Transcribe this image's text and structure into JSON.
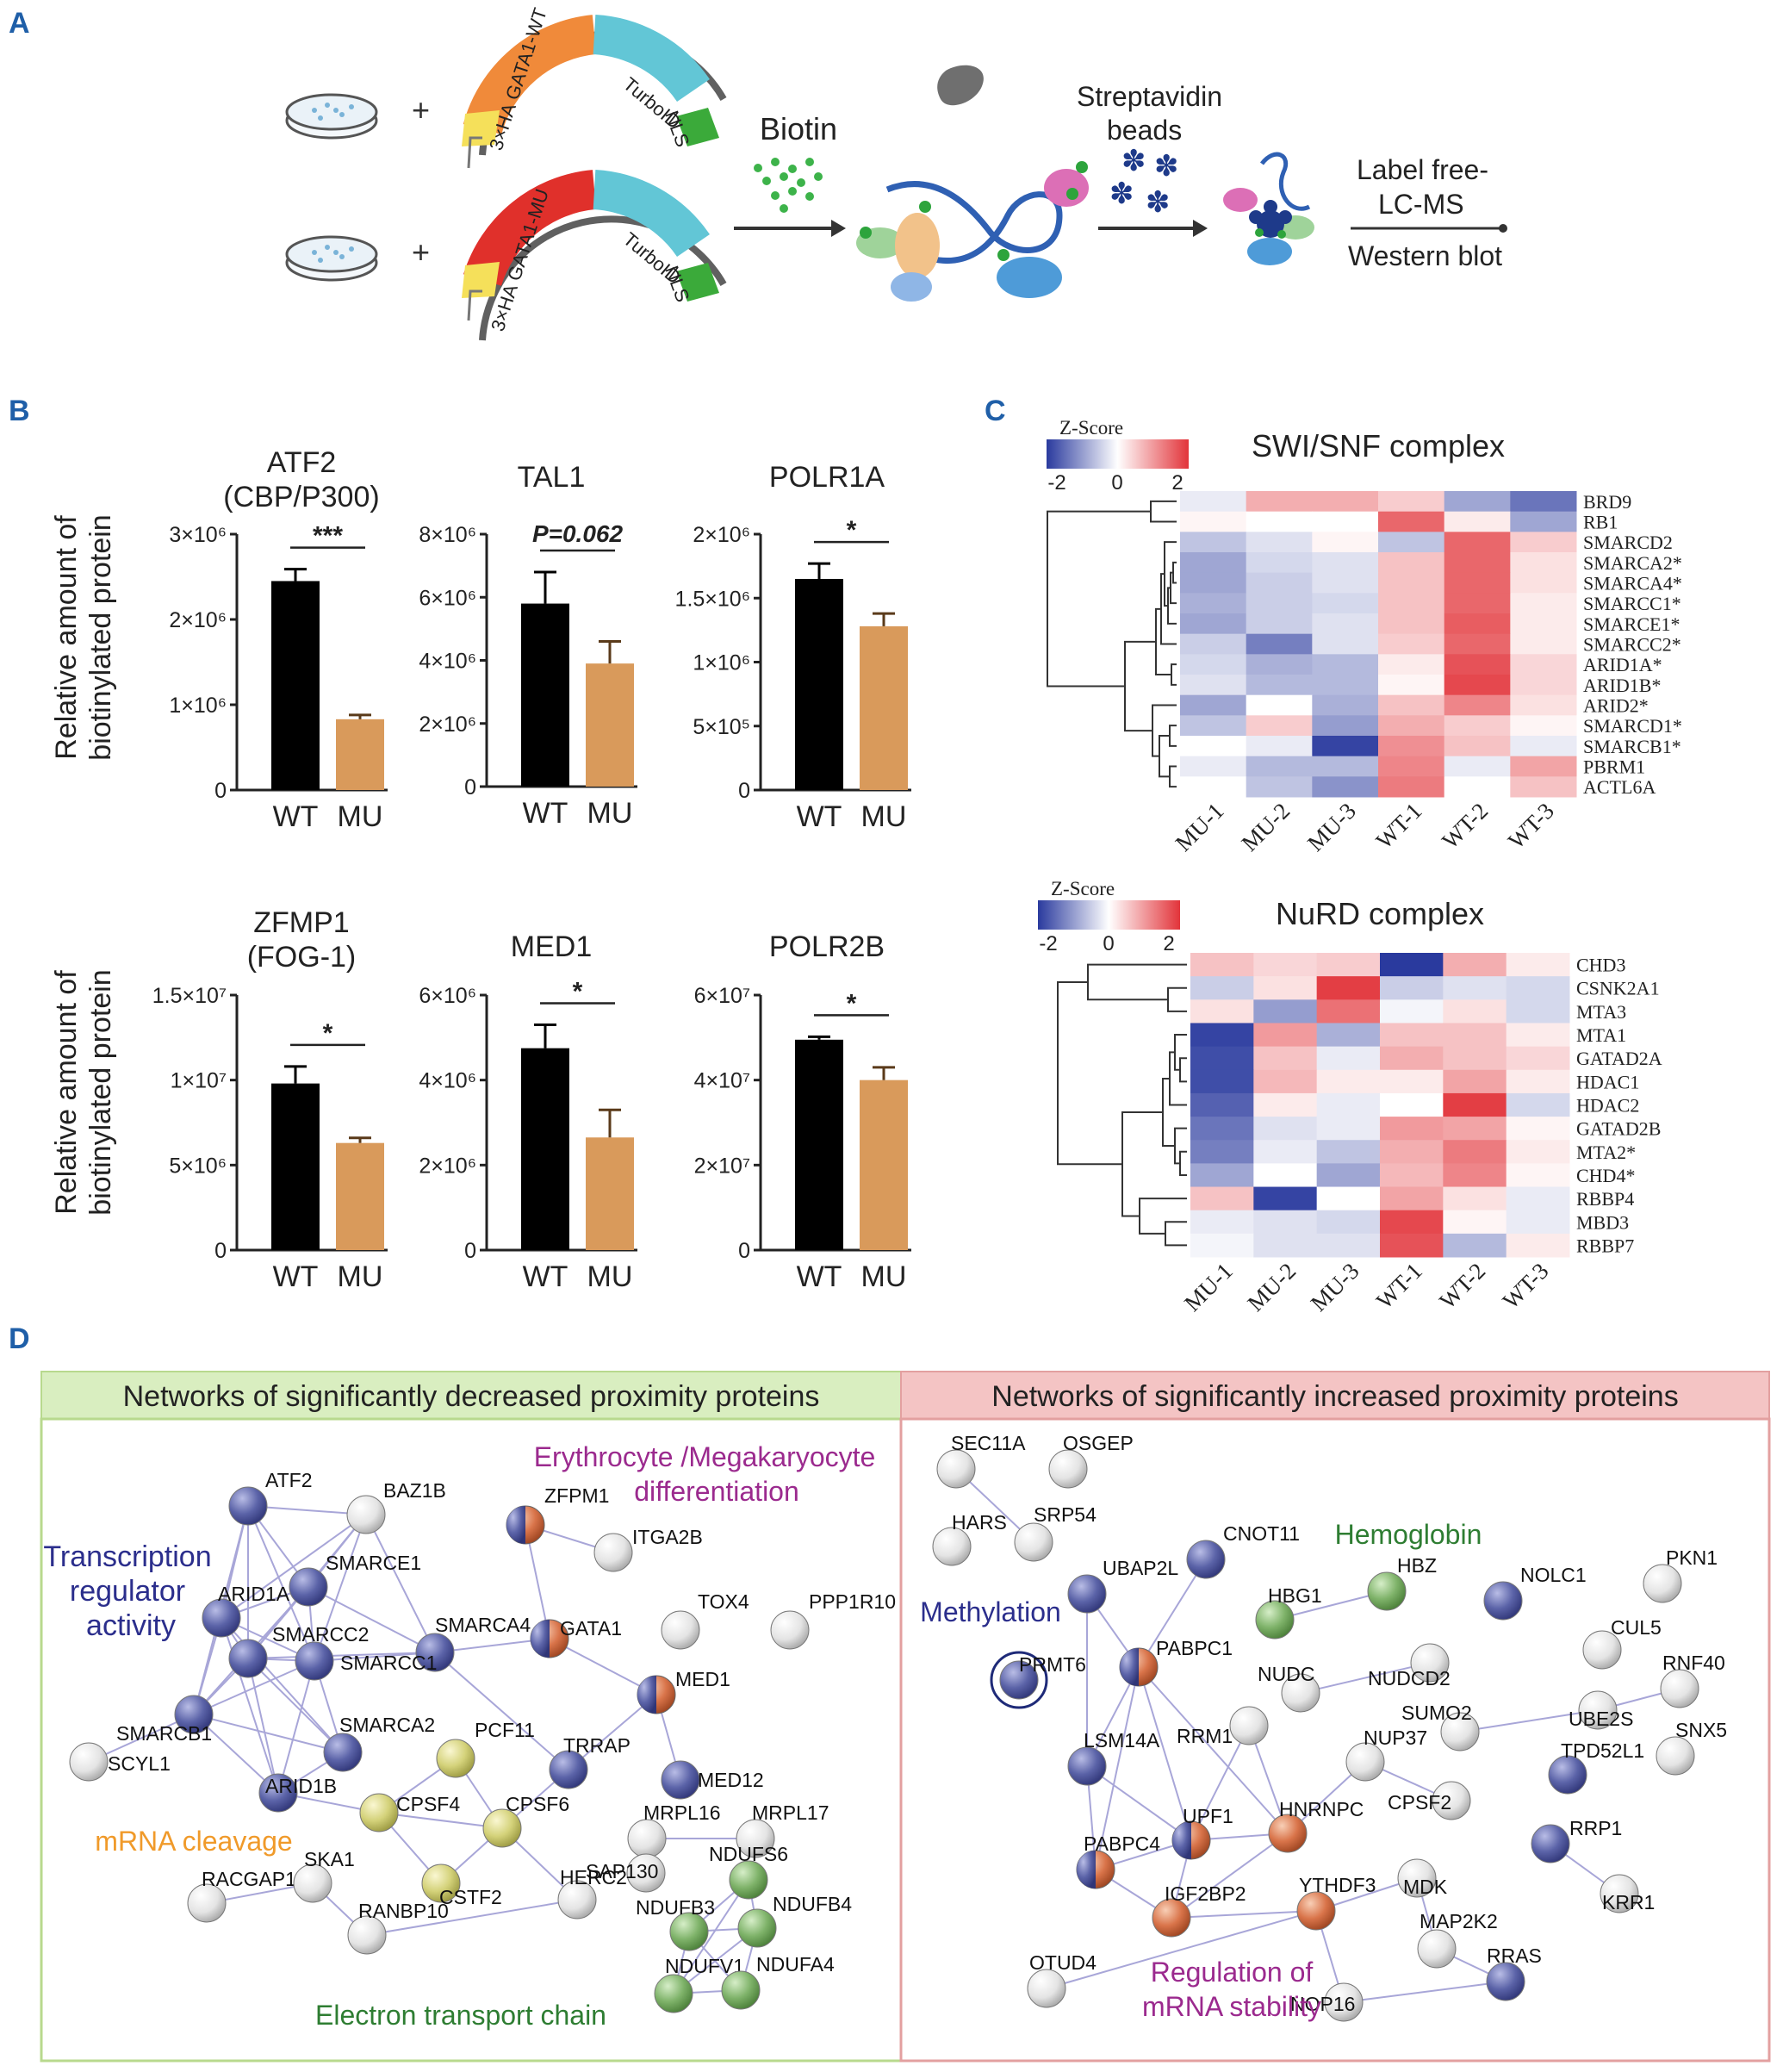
{
  "panel_labels": {
    "a": "A",
    "b": "B",
    "c": "C",
    "d": "D"
  },
  "panelA": {
    "construct_wt": {
      "ha": "3×HA",
      "gene": "GATA1-WT",
      "tag": "TurboID",
      "nls": "NLS"
    },
    "construct_mu": {
      "ha": "3×HA",
      "gene": "GATA1-MU",
      "tag": "TurboID",
      "nls": "NLS"
    },
    "plus": "+",
    "biotin_label": "Biotin",
    "beads_line1": "Streptavidin",
    "beads_line2": "beads",
    "readout_line1": "Label free-",
    "readout_line2": "LC-MS",
    "readout_line3": "Western blot",
    "colors": {
      "wt_gene": "#F08A3A",
      "mu_gene": "#E0302B",
      "turboid": "#62C6D6",
      "nls": "#3BAA3A",
      "promoter": "#F5E05A",
      "backbone": "#606060"
    }
  },
  "panelB": {
    "y_axis_label_line1": "Relative amount of",
    "y_axis_label_line2": "biotinylated protein",
    "colors": {
      "WT": "#000000",
      "MU": "#D99A5B"
    }
  },
  "chart_data": [
    {
      "type": "bar",
      "title": "ATF2",
      "subtitle": "(CBP/P300)",
      "categories": [
        "WT",
        "MU"
      ],
      "values": [
        2450000,
        830000
      ],
      "errors": [
        140000,
        50000
      ],
      "ylim": [
        0,
        3000000
      ],
      "yticks": [
        0,
        1000000,
        2000000,
        3000000
      ],
      "ytick_labels": [
        "0",
        "1×10⁶",
        "2×10⁶",
        "3×10⁶"
      ],
      "significance": "***"
    },
    {
      "type": "bar",
      "title": "TAL1",
      "subtitle": "",
      "categories": [
        "WT",
        "MU"
      ],
      "values": [
        5800000,
        3900000
      ],
      "errors": [
        1000000,
        700000
      ],
      "ylim": [
        0,
        8000000
      ],
      "yticks": [
        0,
        2000000,
        4000000,
        6000000,
        8000000
      ],
      "ytick_labels": [
        "0",
        "2×10⁶",
        "4×10⁶",
        "6×10⁶",
        "8×10⁶"
      ],
      "significance": "P=0.062"
    },
    {
      "type": "bar",
      "title": "POLR1A",
      "subtitle": "",
      "categories": [
        "WT",
        "MU"
      ],
      "values": [
        1650000,
        1280000
      ],
      "errors": [
        120000,
        100000
      ],
      "ylim": [
        0,
        2000000
      ],
      "yticks": [
        0,
        500000,
        1000000,
        1500000,
        2000000
      ],
      "ytick_labels": [
        "0",
        "5×10⁵",
        "1×10⁶",
        "1.5×10⁶",
        "2×10⁶"
      ],
      "significance": "*"
    },
    {
      "type": "bar",
      "title": "ZFMP1",
      "subtitle": "(FOG-1)",
      "categories": [
        "WT",
        "MU"
      ],
      "values": [
        9800000,
        6300000
      ],
      "errors": [
        1000000,
        300000
      ],
      "ylim": [
        0,
        15000000
      ],
      "yticks": [
        0,
        5000000,
        10000000,
        15000000
      ],
      "ytick_labels": [
        "0",
        "5×10⁶",
        "1×10⁷",
        "1.5×10⁷"
      ],
      "significance": "*"
    },
    {
      "type": "bar",
      "title": "MED1",
      "subtitle": "",
      "categories": [
        "WT",
        "MU"
      ],
      "values": [
        4750000,
        2650000
      ],
      "errors": [
        550000,
        650000
      ],
      "ylim": [
        0,
        6000000
      ],
      "yticks": [
        0,
        2000000,
        4000000,
        6000000
      ],
      "ytick_labels": [
        "0",
        "2×10⁶",
        "4×10⁶",
        "6×10⁶"
      ],
      "significance": "*"
    },
    {
      "type": "bar",
      "title": "POLR2B",
      "subtitle": "",
      "categories": [
        "WT",
        "MU"
      ],
      "values": [
        49500000,
        40000000
      ],
      "errors": [
        700000,
        3000000
      ],
      "ylim": [
        0,
        60000000
      ],
      "yticks": [
        0,
        20000000,
        40000000,
        60000000
      ],
      "ytick_labels": [
        "0",
        "2×10⁷",
        "4×10⁷",
        "6×10⁷"
      ],
      "significance": "*"
    },
    {
      "type": "heatmap",
      "title": "SWI/SNF complex",
      "legend_title": "Z-Score",
      "legend_ticks": [
        "-2",
        "0",
        "2"
      ],
      "columns": [
        "MU-1",
        "MU-2",
        "MU-3",
        "WT-1",
        "WT-2",
        "WT-3"
      ],
      "rows": [
        "BRD9",
        "RB1",
        "SMARCD2",
        "SMARCA2*",
        "SMARCA4*",
        "SMARCC1*",
        "SMARCE1*",
        "SMARCC2*",
        "ARID1A*",
        "ARID1B*",
        "ARID2*",
        "SMARCD1*",
        "SMARCB1*",
        "PBRM1",
        "ACTL6A"
      ],
      "values": [
        [
          -0.2,
          0.8,
          0.8,
          0.5,
          -0.9,
          -1.4
        ],
        [
          0.1,
          0.0,
          0.0,
          1.5,
          0.2,
          -0.9
        ],
        [
          -0.6,
          -0.3,
          0.1,
          -0.6,
          1.5,
          0.5
        ],
        [
          -0.9,
          -0.4,
          -0.3,
          0.6,
          1.5,
          0.3
        ],
        [
          -0.9,
          -0.5,
          -0.3,
          0.6,
          1.5,
          0.3
        ],
        [
          -0.8,
          -0.5,
          -0.4,
          0.6,
          1.5,
          0.2
        ],
        [
          -0.9,
          -0.5,
          -0.3,
          0.6,
          1.6,
          0.2
        ],
        [
          -0.5,
          -1.3,
          -0.3,
          0.5,
          1.5,
          0.2
        ],
        [
          -0.4,
          -0.8,
          -0.7,
          0.2,
          1.7,
          0.4
        ],
        [
          -0.3,
          -0.7,
          -0.7,
          0.1,
          1.8,
          0.4
        ],
        [
          -0.9,
          0.0,
          -0.8,
          0.6,
          1.2,
          0.3
        ],
        [
          -0.6,
          0.5,
          -1.0,
          0.8,
          0.5,
          0.1
        ],
        [
          0.0,
          -0.2,
          -1.9,
          1.1,
          0.6,
          -0.2
        ],
        [
          -0.2,
          -0.7,
          -0.7,
          1.2,
          -0.2,
          0.9
        ],
        [
          0.0,
          -0.6,
          -1.1,
          1.3,
          0.0,
          0.6
        ]
      ]
    },
    {
      "type": "heatmap",
      "title": "NuRD complex",
      "legend_title": "Z-Score",
      "legend_ticks": [
        "-2",
        "0",
        "2"
      ],
      "columns": [
        "MU-1",
        "MU-2",
        "MU-3",
        "WT-1",
        "WT-2",
        "WT-3"
      ],
      "rows": [
        "CHD3",
        "CSNK2A1",
        "MTA3",
        "MTA1",
        "GATAD2A",
        "HDAC1",
        "HDAC2",
        "GATAD2B",
        "MTA2*",
        "CHD4*",
        "RBBP4",
        "MBD3",
        "RBBP7"
      ],
      "values": [
        [
          0.6,
          0.4,
          0.5,
          -2.0,
          0.8,
          0.2
        ],
        [
          -0.5,
          0.3,
          1.9,
          -0.5,
          -0.3,
          -0.4
        ],
        [
          0.3,
          -1.0,
          1.4,
          -0.1,
          0.3,
          -0.4
        ],
        [
          -1.9,
          1.0,
          -0.8,
          0.6,
          0.6,
          0.2
        ],
        [
          -1.8,
          0.6,
          -0.2,
          0.8,
          0.6,
          0.4
        ],
        [
          -1.8,
          0.7,
          0.2,
          0.2,
          0.9,
          0.2
        ],
        [
          -1.6,
          0.2,
          -0.2,
          0.0,
          1.9,
          -0.4
        ],
        [
          -1.4,
          -0.3,
          -0.2,
          1.0,
          0.9,
          0.1
        ],
        [
          -1.3,
          -0.2,
          -0.6,
          0.8,
          1.3,
          0.2
        ],
        [
          -0.9,
          0.0,
          -0.9,
          0.7,
          1.2,
          0.1
        ],
        [
          0.6,
          -1.9,
          0.0,
          0.9,
          0.3,
          -0.2
        ],
        [
          -0.2,
          -0.3,
          -0.4,
          1.8,
          0.1,
          -0.2
        ],
        [
          -0.1,
          -0.3,
          -0.3,
          1.7,
          -0.7,
          0.2
        ]
      ]
    }
  ],
  "panelD": {
    "left_header": "Networks of significantly decreased proximity proteins",
    "right_header": "Networks of significantly increased proximity proteins",
    "left_header_color": "#D9EEC0",
    "right_header_color": "#F4C4C4",
    "colors": {
      "blue": "#5B63A8",
      "orange": "#D9744A",
      "yellow": "#D4D27A",
      "green": "#7FB36A",
      "gray": "#E4E4E4",
      "edge": "#9A98D0"
    },
    "left_categories": [
      {
        "label": "Transcription",
        "color": "#2B2E8C"
      },
      {
        "label": "regulator",
        "color": "#2B2E8C"
      },
      {
        "label": "activity",
        "color": "#2B2E8C"
      },
      {
        "label": "Erythrocyte /Megakaryocyte",
        "color": "#9B2A8E"
      },
      {
        "label": "differentiation",
        "color": "#9B2A8E"
      },
      {
        "label": "mRNA cleavage",
        "color": "#F09A2A"
      },
      {
        "label": "Electron transport chain",
        "color": "#2E7D32"
      }
    ],
    "right_categories": [
      {
        "label": "Methylation",
        "color": "#2B2E8C"
      },
      {
        "label": "Hemoglobin",
        "color": "#2E7D32"
      },
      {
        "label": "Regulation of",
        "color": "#9B2A8E"
      },
      {
        "label": "mRNA stability",
        "color": "#9B2A8E"
      }
    ],
    "left_nodes": [
      {
        "name": "ATF2",
        "color": "blue"
      },
      {
        "name": "BAZ1B",
        "color": "gray"
      },
      {
        "name": "ARID1A",
        "color": "blue"
      },
      {
        "name": "SMARCE1",
        "color": "blue"
      },
      {
        "name": "SMARCC2",
        "color": "blue"
      },
      {
        "name": "SMARCA4",
        "color": "blue"
      },
      {
        "name": "SMARCB1",
        "color": "blue"
      },
      {
        "name": "SMARCC1",
        "color": "blue"
      },
      {
        "name": "SMARCA2",
        "color": "blue"
      },
      {
        "name": "SCYL1",
        "color": "gray"
      },
      {
        "name": "ARID1B",
        "color": "blue"
      },
      {
        "name": "ZFPM1",
        "color": "split"
      },
      {
        "name": "ITGA2B",
        "color": "gray"
      },
      {
        "name": "GATA1",
        "color": "split"
      },
      {
        "name": "TOX4",
        "color": "gray"
      },
      {
        "name": "PPP1R10",
        "color": "gray"
      },
      {
        "name": "MED1",
        "color": "split"
      },
      {
        "name": "PCF11",
        "color": "yellow"
      },
      {
        "name": "CPSF4",
        "color": "yellow"
      },
      {
        "name": "CPSF6",
        "color": "yellow"
      },
      {
        "name": "TRRAP",
        "color": "blue"
      },
      {
        "name": "MED12",
        "color": "blue"
      },
      {
        "name": "MRPL16",
        "color": "gray"
      },
      {
        "name": "MRPL17",
        "color": "gray"
      },
      {
        "name": "CSTF2",
        "color": "yellow"
      },
      {
        "name": "RACGAP1",
        "color": "gray"
      },
      {
        "name": "SKA1",
        "color": "gray"
      },
      {
        "name": "RANBP10",
        "color": "gray"
      },
      {
        "name": "HERC2",
        "color": "gray"
      },
      {
        "name": "SAP130",
        "color": "gray"
      },
      {
        "name": "NDUFS6",
        "color": "green"
      },
      {
        "name": "NDUFB3",
        "color": "green"
      },
      {
        "name": "NDUFB4",
        "color": "green"
      },
      {
        "name": "NDUFV1",
        "color": "green"
      },
      {
        "name": "NDUFA4",
        "color": "green"
      }
    ],
    "right_nodes": [
      {
        "name": "SEC11A",
        "color": "gray"
      },
      {
        "name": "OSGEP",
        "color": "gray"
      },
      {
        "name": "HARS",
        "color": "gray"
      },
      {
        "name": "SRP54",
        "color": "gray"
      },
      {
        "name": "UBAP2L",
        "color": "blue"
      },
      {
        "name": "CNOT11",
        "color": "blue"
      },
      {
        "name": "HBG1",
        "color": "green"
      },
      {
        "name": "HBZ",
        "color": "green"
      },
      {
        "name": "NOLC1",
        "color": "blue"
      },
      {
        "name": "PKN1",
        "color": "gray"
      },
      {
        "name": "PRMT6",
        "color": "blue"
      },
      {
        "name": "PABPC1",
        "color": "split"
      },
      {
        "name": "NUDC",
        "color": "gray"
      },
      {
        "name": "NUDCD2",
        "color": "gray"
      },
      {
        "name": "CUL5",
        "color": "gray"
      },
      {
        "name": "RNF40",
        "color": "gray"
      },
      {
        "name": "RRM1",
        "color": "gray"
      },
      {
        "name": "SUMO2",
        "color": "gray"
      },
      {
        "name": "UBE2S",
        "color": "gray"
      },
      {
        "name": "LSM14A",
        "color": "blue"
      },
      {
        "name": "NUP37",
        "color": "gray"
      },
      {
        "name": "TPD52L1",
        "color": "blue"
      },
      {
        "name": "SNX5",
        "color": "gray"
      },
      {
        "name": "CPSF2",
        "color": "gray"
      },
      {
        "name": "UPF1",
        "color": "split"
      },
      {
        "name": "HNRNPC",
        "color": "orange"
      },
      {
        "name": "PABPC4",
        "color": "split"
      },
      {
        "name": "MDK",
        "color": "gray"
      },
      {
        "name": "RRP1",
        "color": "blue"
      },
      {
        "name": "KRR1",
        "color": "gray"
      },
      {
        "name": "IGF2BP2",
        "color": "orange"
      },
      {
        "name": "YTHDF3",
        "color": "orange"
      },
      {
        "name": "MAP2K2",
        "color": "gray"
      },
      {
        "name": "OTUD4",
        "color": "gray"
      },
      {
        "name": "NOP16",
        "color": "gray"
      },
      {
        "name": "RRAS",
        "color": "blue"
      }
    ]
  }
}
